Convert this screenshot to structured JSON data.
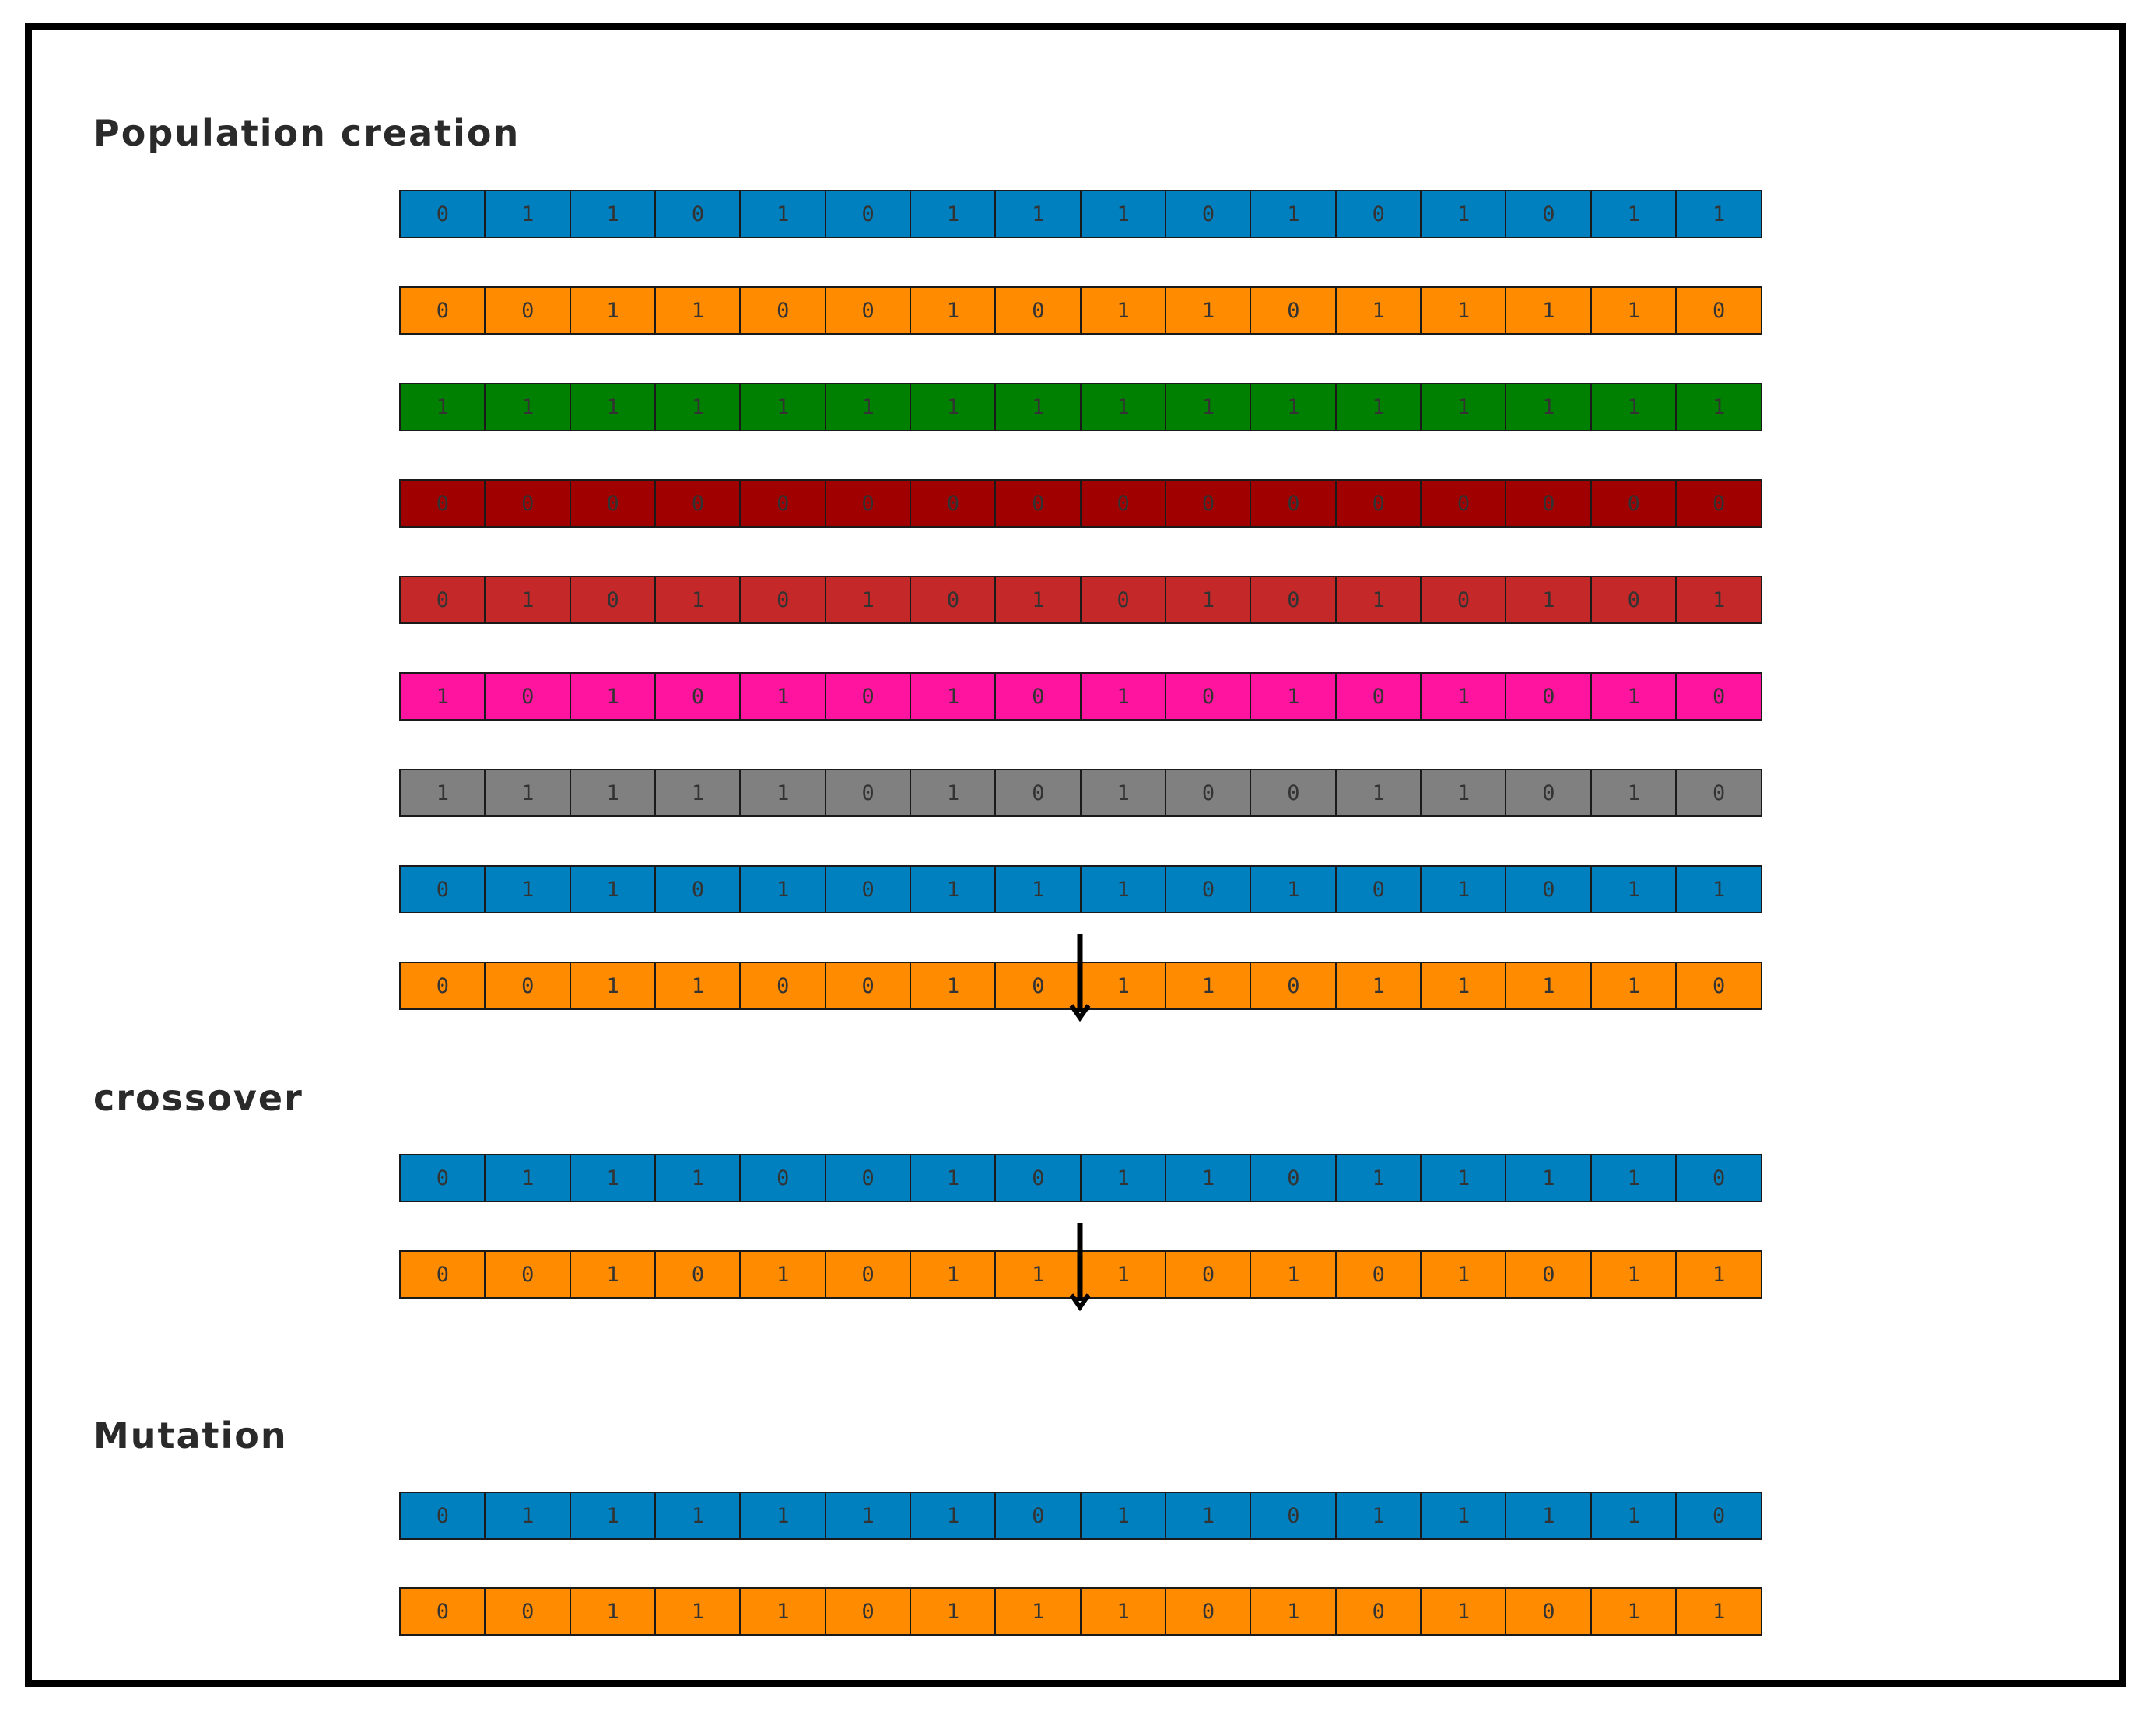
{
  "colors": {
    "blue": "#0080bf",
    "orange": "#ff8c00",
    "green": "#008000",
    "dark_red": "#a00000",
    "red": "#c42828",
    "pink": "#ff14a0",
    "gray": "#808080"
  },
  "sections": [
    {
      "title": "Population creation",
      "rows": [
        {
          "color": "#0080bf",
          "bits": [
            "0",
            "1",
            "1",
            "0",
            "1",
            "0",
            "1",
            "1",
            "1",
            "0",
            "1",
            "0",
            "1",
            "0",
            "1",
            "1"
          ]
        },
        {
          "color": "#ff8c00",
          "bits": [
            "0",
            "0",
            "1",
            "1",
            "0",
            "0",
            "1",
            "0",
            "1",
            "1",
            "0",
            "1",
            "1",
            "1",
            "1",
            "0"
          ]
        },
        {
          "color": "#008000",
          "bits": [
            "1",
            "1",
            "1",
            "1",
            "1",
            "1",
            "1",
            "1",
            "1",
            "1",
            "1",
            "1",
            "1",
            "1",
            "1",
            "1"
          ]
        },
        {
          "color": "#a00000",
          "bits": [
            "0",
            "0",
            "0",
            "0",
            "0",
            "0",
            "0",
            "0",
            "0",
            "0",
            "0",
            "0",
            "0",
            "0",
            "0",
            "0"
          ]
        },
        {
          "color": "#c42828",
          "bits": [
            "0",
            "1",
            "0",
            "1",
            "0",
            "1",
            "0",
            "1",
            "0",
            "1",
            "0",
            "1",
            "0",
            "1",
            "0",
            "1"
          ]
        },
        {
          "color": "#ff14a0",
          "bits": [
            "1",
            "0",
            "1",
            "0",
            "1",
            "0",
            "1",
            "0",
            "1",
            "0",
            "1",
            "0",
            "1",
            "0",
            "1",
            "0"
          ]
        },
        {
          "color": "#808080",
          "bits": [
            "1",
            "1",
            "1",
            "1",
            "1",
            "0",
            "1",
            "0",
            "1",
            "0",
            "0",
            "1",
            "1",
            "0",
            "1",
            "0"
          ]
        },
        {
          "color": "#0080bf",
          "bits": [
            "0",
            "1",
            "1",
            "0",
            "1",
            "0",
            "1",
            "1",
            "1",
            "0",
            "1",
            "0",
            "1",
            "0",
            "1",
            "1"
          ]
        },
        {
          "color": "#ff8c00",
          "bits": [
            "0",
            "0",
            "1",
            "1",
            "0",
            "0",
            "1",
            "0",
            "1",
            "1",
            "0",
            "1",
            "1",
            "1",
            "1",
            "0"
          ]
        }
      ]
    },
    {
      "title": "crossover",
      "rows": [
        {
          "color": "#0080bf",
          "bits": [
            "0",
            "1",
            "1",
            "1",
            "0",
            "0",
            "1",
            "0",
            "1",
            "1",
            "0",
            "1",
            "1",
            "1",
            "1",
            "0"
          ]
        },
        {
          "color": "#ff8c00",
          "bits": [
            "0",
            "0",
            "1",
            "0",
            "1",
            "0",
            "1",
            "1",
            "1",
            "0",
            "1",
            "0",
            "1",
            "0",
            "1",
            "1"
          ]
        }
      ]
    },
    {
      "title": "Mutation",
      "rows": [
        {
          "color": "#0080bf",
          "bits": [
            "0",
            "1",
            "1",
            "1",
            "1",
            "1",
            "1",
            "0",
            "1",
            "1",
            "0",
            "1",
            "1",
            "1",
            "1",
            "0"
          ]
        },
        {
          "color": "#ff8c00",
          "bits": [
            "0",
            "0",
            "1",
            "1",
            "1",
            "0",
            "1",
            "1",
            "1",
            "0",
            "1",
            "0",
            "1",
            "0",
            "1",
            "1"
          ]
        }
      ]
    }
  ],
  "crossover_point": {
    "after_bit": 8
  }
}
